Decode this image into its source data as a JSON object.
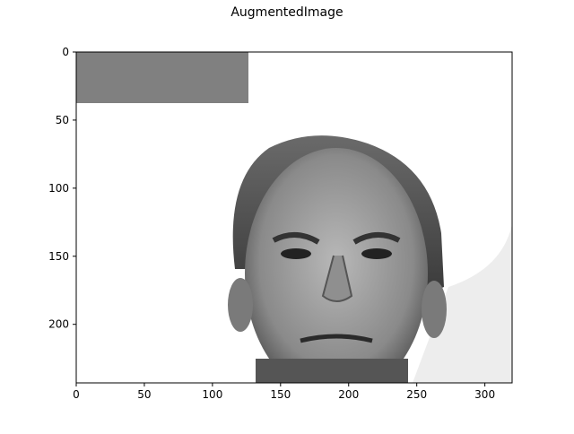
{
  "chart_data": {
    "type": "image",
    "title": "AugmentedImage",
    "xlim": [
      0,
      320
    ],
    "xticks": [
      0,
      50,
      100,
      150,
      200,
      250,
      300
    ],
    "ylim": [
      243,
      0
    ],
    "yticks": [
      0,
      50,
      100,
      150,
      200
    ]
  }
}
